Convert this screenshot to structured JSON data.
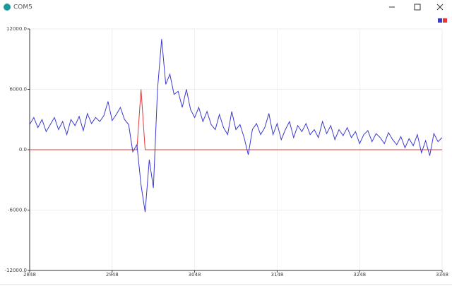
{
  "window": {
    "title": "COM5"
  },
  "chart_data": {
    "type": "line",
    "x": [
      2848,
      2853,
      2858,
      2863,
      2868,
      2873,
      2878,
      2883,
      2888,
      2893,
      2898,
      2903,
      2908,
      2913,
      2918,
      2923,
      2928,
      2933,
      2938,
      2943,
      2948,
      2953,
      2958,
      2963,
      2968,
      2973,
      2978,
      2983,
      2988,
      2993,
      2998,
      3003,
      3008,
      3013,
      3018,
      3023,
      3028,
      3033,
      3038,
      3043,
      3048,
      3053,
      3058,
      3063,
      3068,
      3073,
      3078,
      3083,
      3088,
      3093,
      3098,
      3103,
      3108,
      3113,
      3118,
      3123,
      3128,
      3133,
      3138,
      3143,
      3148,
      3153,
      3158,
      3163,
      3168,
      3173,
      3178,
      3183,
      3188,
      3193,
      3198,
      3203,
      3208,
      3213,
      3218,
      3223,
      3228,
      3233,
      3238,
      3243,
      3248,
      3253,
      3258,
      3263,
      3268,
      3273,
      3278,
      3283,
      3288,
      3293,
      3298,
      3303,
      3308,
      3313,
      3318,
      3323,
      3328,
      3333,
      3338,
      3343,
      3348
    ],
    "series": [
      {
        "color": "#3a3ad0",
        "values": [
          2500,
          3200,
          2200,
          3000,
          1800,
          2500,
          3200,
          2000,
          2800,
          1500,
          3000,
          2400,
          3300,
          1900,
          3600,
          2600,
          3200,
          2800,
          3400,
          4800,
          2900,
          3500,
          4200,
          3000,
          2500,
          -200,
          500,
          -3500,
          -6200,
          -1000,
          -3800,
          6000,
          11000,
          6500,
          7500,
          5500,
          5800,
          4200,
          6000,
          4000,
          3200,
          4200,
          2800,
          3800,
          2500,
          2000,
          3500,
          2200,
          1500,
          3800,
          2000,
          2500,
          1200,
          -500,
          2000,
          2600,
          1500,
          2200,
          3600,
          1500,
          2600,
          1000,
          2000,
          2800,
          1200,
          2400,
          1800,
          2600,
          1500,
          2000,
          1200,
          2800,
          1600,
          2400,
          1000,
          2000,
          1400,
          2200,
          1200,
          1800,
          600,
          1500,
          1900,
          800,
          1600,
          1200,
          600,
          1700,
          1000,
          500,
          1300,
          200,
          1100,
          400,
          1500,
          -300,
          900,
          -600,
          1600,
          800,
          1200
        ]
      },
      {
        "color": "#e03a3a",
        "values": [
          0,
          0,
          0,
          0,
          0,
          0,
          0,
          0,
          0,
          0,
          0,
          0,
          0,
          0,
          0,
          0,
          0,
          0,
          0,
          0,
          0,
          0,
          0,
          0,
          0,
          0,
          0,
          6000,
          0,
          0,
          0,
          0,
          0,
          0,
          0,
          0,
          0,
          0,
          0,
          0,
          0,
          0,
          0,
          0,
          0,
          0,
          0,
          0,
          0,
          0,
          0,
          0,
          0,
          0,
          0,
          0,
          0,
          0,
          0,
          0,
          0,
          0,
          0,
          0,
          0,
          0,
          0,
          0,
          0,
          0,
          0,
          0,
          0,
          0,
          0,
          0,
          0,
          0,
          0,
          0,
          0,
          0,
          0,
          0,
          0,
          0,
          0,
          0,
          0,
          0,
          0,
          0,
          0,
          0,
          0,
          0,
          0,
          0,
          0,
          0,
          0
        ]
      }
    ],
    "xlim": [
      2848,
      3348
    ],
    "xticks": [
      2848,
      2948,
      3048,
      3148,
      3248,
      3348
    ],
    "ylim": [
      -12000,
      12000
    ],
    "yticks": [
      {
        "value": 12000,
        "label": "12000.0"
      },
      {
        "value": 6000,
        "label": "6000.0"
      },
      {
        "value": 0,
        "label": "0.0"
      },
      {
        "value": -6000,
        "label": "-6000.0"
      },
      {
        "value": -12000,
        "label": "-12000.0"
      }
    ],
    "grid": true
  }
}
